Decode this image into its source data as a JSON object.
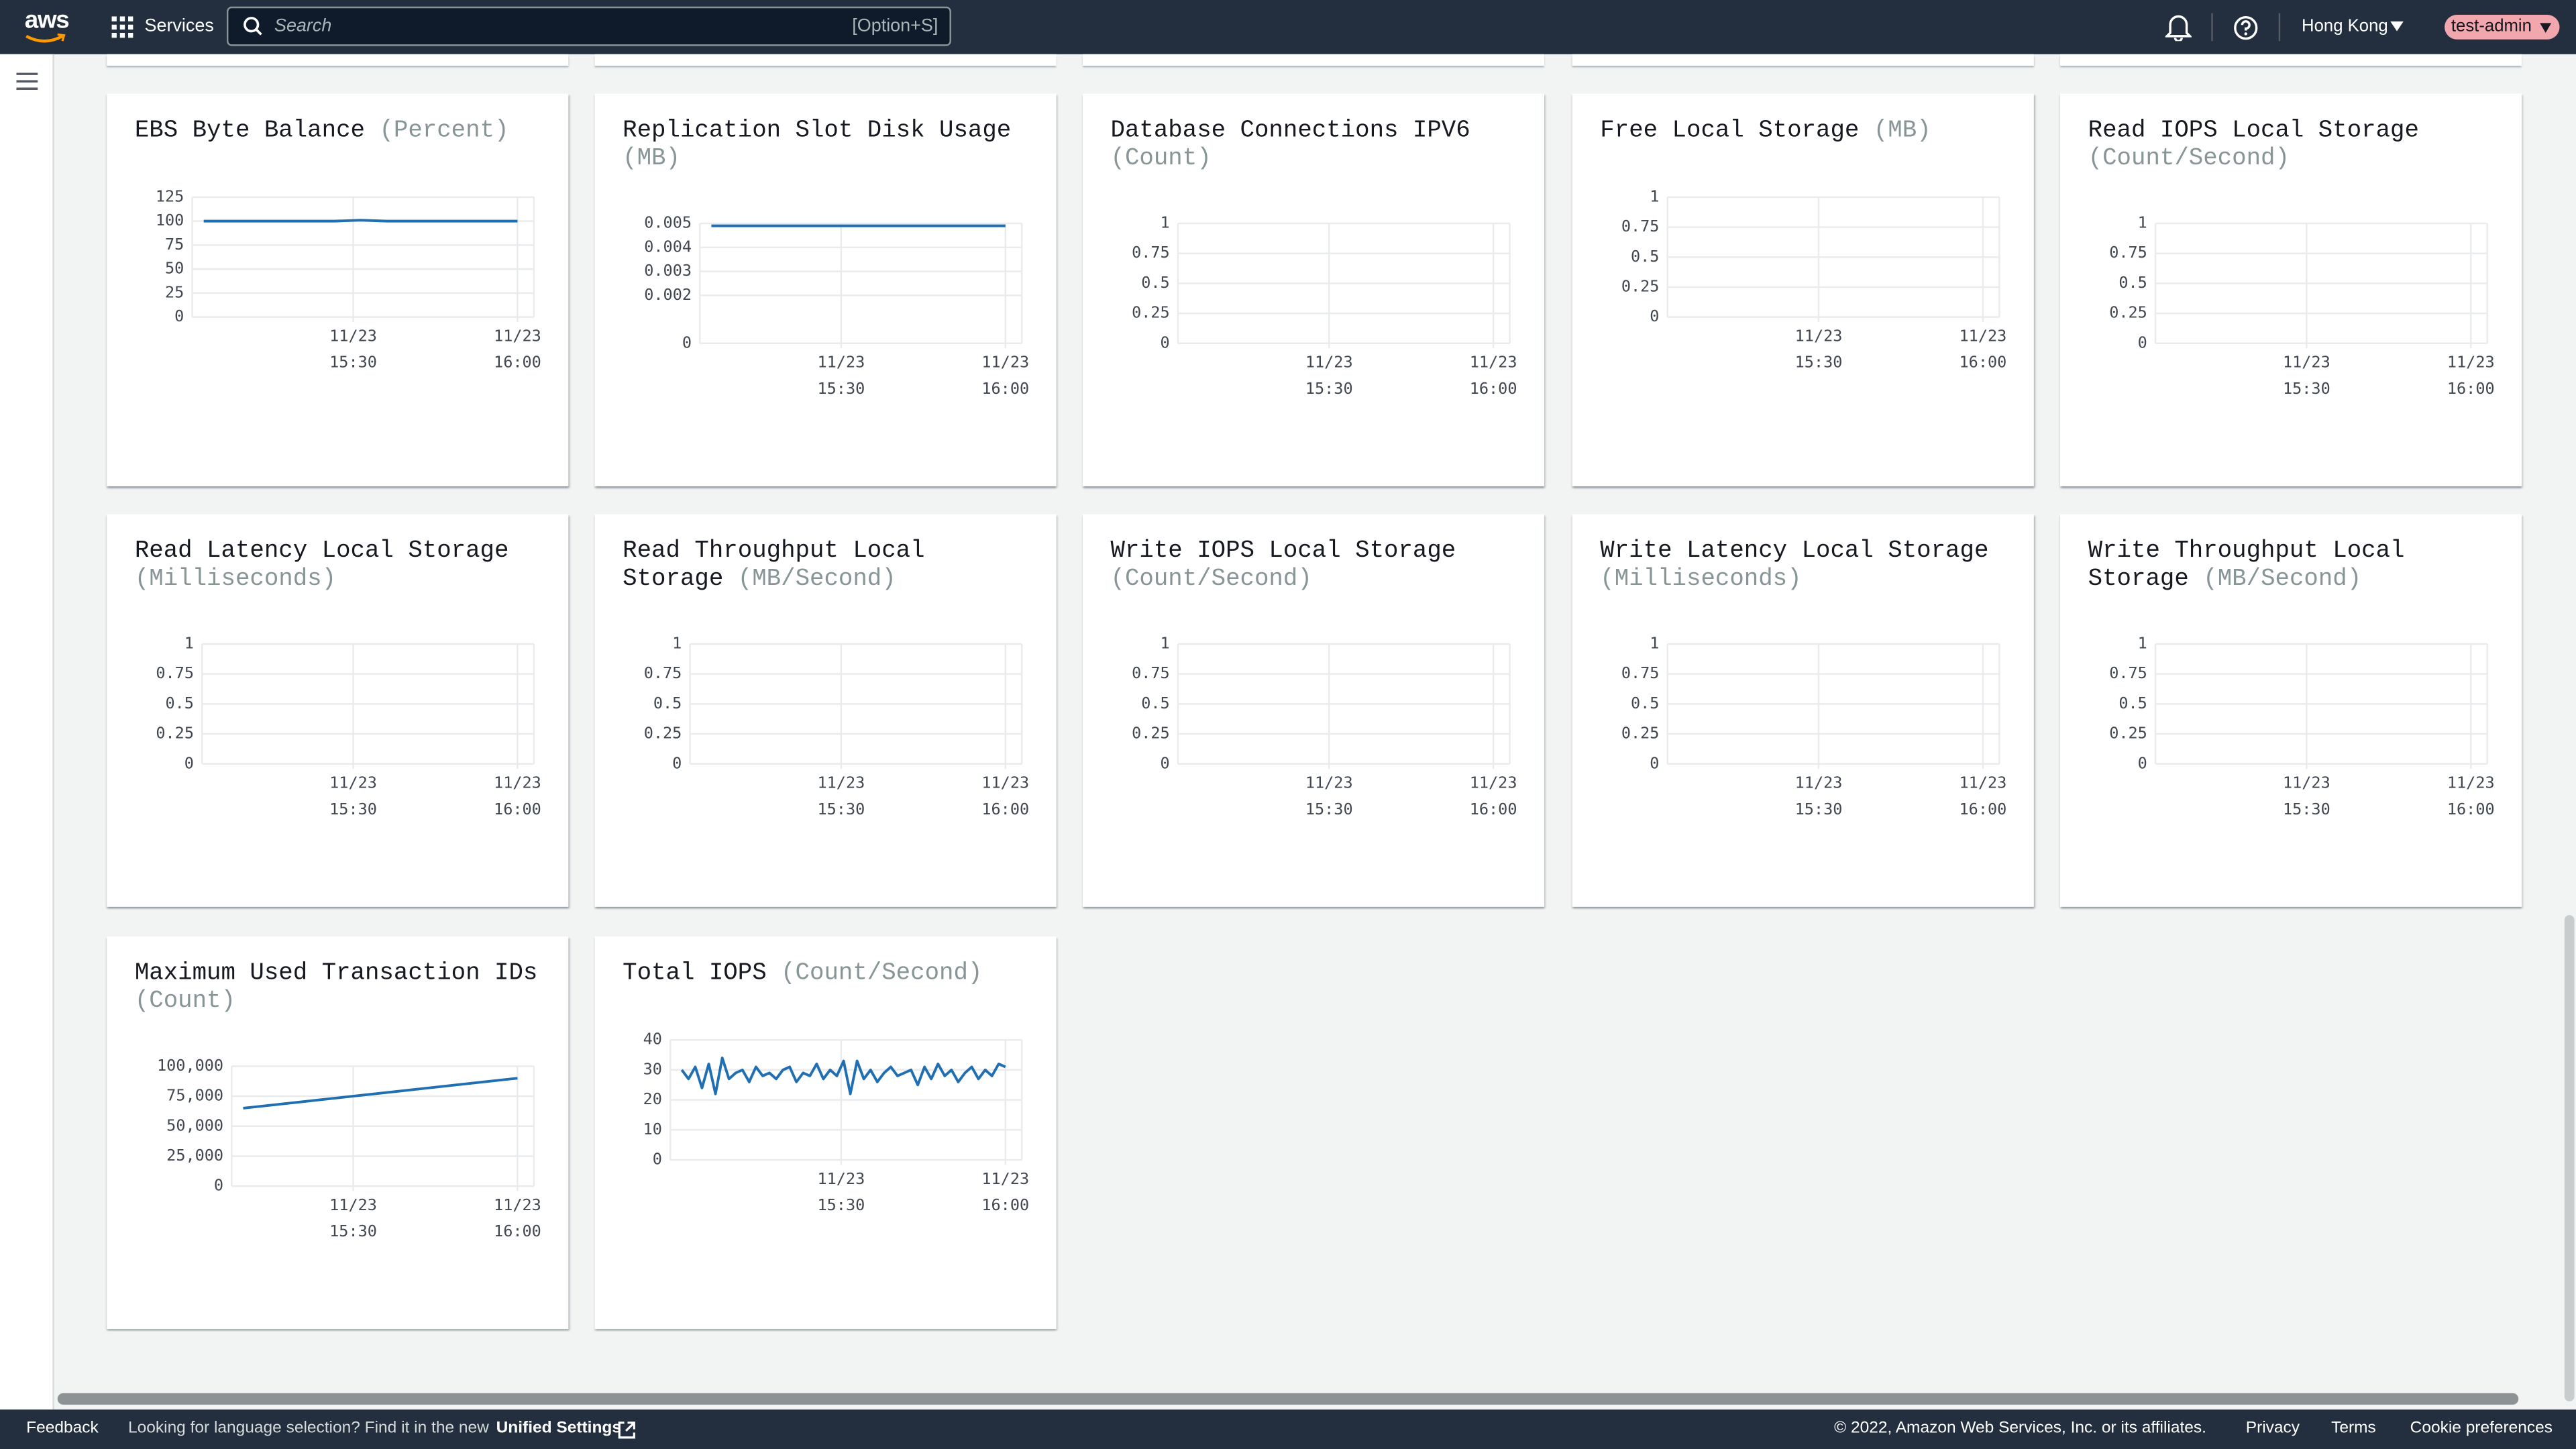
{
  "header": {
    "logo": "aws",
    "services": "Services",
    "search_placeholder": "Search",
    "search_shortcut": "[Option+S]",
    "region": "Hong Kong",
    "user": "test-admin"
  },
  "charts": [
    {
      "type": "line",
      "title": "EBS Byte Balance",
      "unit": "(Percent)",
      "ylim": [
        0,
        125
      ],
      "yticks": [
        0,
        25,
        50,
        75,
        100,
        125
      ],
      "xticks": [
        {
          "date": "11/23",
          "time": "15:30"
        },
        {
          "date": "11/23",
          "time": "16:00"
        }
      ],
      "series": [
        {
          "color": "#1f6fb2",
          "values": [
            100,
            100,
            100,
            100,
            100,
            100,
            101,
            100,
            100,
            100,
            100,
            100,
            100
          ]
        }
      ]
    },
    {
      "type": "line",
      "title": "Replication Slot Disk Usage",
      "unit": "(MB)",
      "ylim": [
        0,
        0.005
      ],
      "yticks": [
        0,
        0.002,
        0.003,
        0.004,
        0.005
      ],
      "xticks": [
        {
          "date": "11/23",
          "time": "15:30"
        },
        {
          "date": "11/23",
          "time": "16:00"
        }
      ],
      "series": [
        {
          "color": "#1f6fb2",
          "values": [
            0.0049,
            0.0049,
            0.0049,
            0.0049,
            0.0049,
            0.0049,
            0.0049,
            0.0049
          ]
        }
      ]
    },
    {
      "type": "line",
      "title": "Database Connections IPV6",
      "unit": "(Count)",
      "ylim": [
        0,
        1
      ],
      "yticks": [
        0,
        0.25,
        0.5,
        0.75,
        1
      ],
      "xticks": [
        {
          "date": "11/23",
          "time": "15:30"
        },
        {
          "date": "11/23",
          "time": "16:00"
        }
      ]
    },
    {
      "type": "line",
      "title": "Free Local Storage",
      "unit": "(MB)",
      "ylim": [
        0,
        1
      ],
      "yticks": [
        0,
        0.25,
        0.5,
        0.75,
        1
      ],
      "xticks": [
        {
          "date": "11/23",
          "time": "15:30"
        },
        {
          "date": "11/23",
          "time": "16:00"
        }
      ]
    },
    {
      "type": "line",
      "title": "Read IOPS Local Storage",
      "unit": "(Count/Second)",
      "ylim": [
        0,
        1
      ],
      "yticks": [
        0,
        0.25,
        0.5,
        0.75,
        1
      ],
      "xticks": [
        {
          "date": "11/23",
          "time": "15:30"
        },
        {
          "date": "11/23",
          "time": "16:00"
        }
      ]
    },
    {
      "type": "line",
      "title": "Read Latency Local Storage",
      "unit": "(Milliseconds)",
      "ylim": [
        0,
        1
      ],
      "yticks": [
        0,
        0.25,
        0.5,
        0.75,
        1
      ],
      "xticks": [
        {
          "date": "11/23",
          "time": "15:30"
        },
        {
          "date": "11/23",
          "time": "16:00"
        }
      ]
    },
    {
      "type": "line",
      "title": "Read Throughput Local Storage",
      "unit": "(MB/Second)",
      "ylim": [
        0,
        1
      ],
      "yticks": [
        0,
        0.25,
        0.5,
        0.75,
        1
      ],
      "xticks": [
        {
          "date": "11/23",
          "time": "15:30"
        },
        {
          "date": "11/23",
          "time": "16:00"
        }
      ]
    },
    {
      "type": "line",
      "title": "Write IOPS Local Storage",
      "unit": "(Count/Second)",
      "ylim": [
        0,
        1
      ],
      "yticks": [
        0,
        0.25,
        0.5,
        0.75,
        1
      ],
      "xticks": [
        {
          "date": "11/23",
          "time": "15:30"
        },
        {
          "date": "11/23",
          "time": "16:00"
        }
      ]
    },
    {
      "type": "line",
      "title": "Write Latency Local Storage",
      "unit": "(Milliseconds)",
      "ylim": [
        0,
        1
      ],
      "yticks": [
        0,
        0.25,
        0.5,
        0.75,
        1
      ],
      "xticks": [
        {
          "date": "11/23",
          "time": "15:30"
        },
        {
          "date": "11/23",
          "time": "16:00"
        }
      ]
    },
    {
      "type": "line",
      "title": "Write Throughput Local Storage",
      "unit": "(MB/Second)",
      "ylim": [
        0,
        1
      ],
      "yticks": [
        0,
        0.25,
        0.5,
        0.75,
        1
      ],
      "xticks": [
        {
          "date": "11/23",
          "time": "15:30"
        },
        {
          "date": "11/23",
          "time": "16:00"
        }
      ]
    },
    {
      "type": "line",
      "title": "Maximum Used Transaction IDs",
      "unit": "(Count)",
      "ylim": [
        0,
        100000
      ],
      "yticks": [
        0,
        {
          "value": 25000,
          "label": "25,000"
        },
        {
          "value": 50000,
          "label": "50,000"
        },
        {
          "value": 75000,
          "label": "75,000"
        },
        {
          "value": 100000,
          "label": "100,000"
        }
      ],
      "xticks": [
        {
          "date": "11/23",
          "time": "15:30"
        },
        {
          "date": "11/23",
          "time": "16:00"
        }
      ],
      "series": [
        {
          "color": "#1f6fb2",
          "values": [
            65000,
            70000,
            75000,
            80000,
            85000,
            90000
          ]
        }
      ]
    },
    {
      "type": "line",
      "title": "Total IOPS",
      "unit": "(Count/Second)",
      "ylim": [
        0,
        40
      ],
      "yticks": [
        0,
        10,
        20,
        30,
        40
      ],
      "xticks": [
        {
          "date": "11/23",
          "time": "15:30"
        },
        {
          "date": "11/23",
          "time": "16:00"
        }
      ],
      "series": [
        {
          "color": "#1f6fb2",
          "values": [
            30,
            27,
            31,
            24,
            32,
            22,
            34,
            27,
            29,
            30,
            26,
            31,
            28,
            29,
            27,
            30,
            31,
            26,
            29,
            28,
            32,
            27,
            30,
            28,
            33,
            22,
            33,
            27,
            30,
            26,
            29,
            31,
            28,
            29,
            30,
            25,
            31,
            27,
            32,
            28,
            30,
            26,
            29,
            31,
            27,
            30,
            28,
            32,
            31
          ]
        }
      ]
    }
  ],
  "footer": {
    "feedback": "Feedback",
    "message": "Looking for language selection? Find it in the new",
    "link": "Unified Settings",
    "copyright": "© 2022, Amazon Web Services, Inc. or its affiliates.",
    "privacy": "Privacy",
    "terms": "Terms",
    "cookies": "Cookie preferences"
  }
}
